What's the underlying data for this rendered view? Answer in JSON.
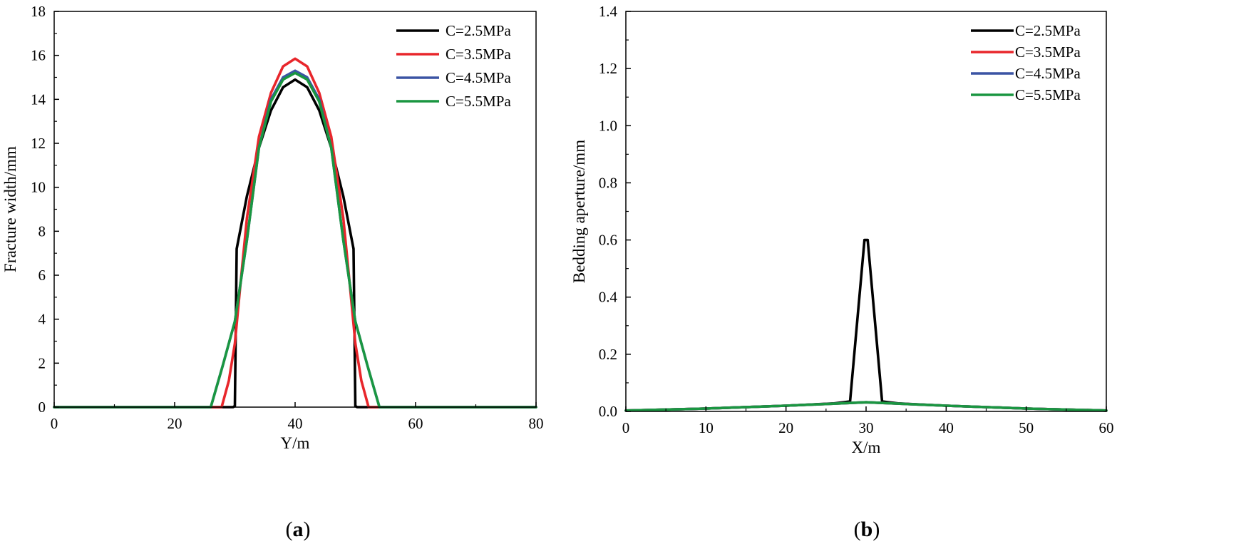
{
  "chart_data": [
    {
      "type": "line",
      "panel_label": "a",
      "xlabel": "Y/m",
      "ylabel": "Fracture width/mm",
      "xlim": [
        0,
        80
      ],
      "ylim": [
        0,
        18
      ],
      "xticks": [
        0,
        20,
        40,
        60,
        80
      ],
      "yticks": [
        0,
        2,
        4,
        6,
        8,
        10,
        12,
        14,
        16,
        18
      ],
      "legend_position": "top-right",
      "series": [
        {
          "name": "C=2.5MPa",
          "color": "#000000",
          "points": [
            [
              0,
              0
            ],
            [
              29.7,
              0
            ],
            [
              30.0,
              0.05
            ],
            [
              30.3,
              7.2
            ],
            [
              32,
              9.6
            ],
            [
              34,
              11.8
            ],
            [
              36,
              13.5
            ],
            [
              38,
              14.55
            ],
            [
              40,
              14.9
            ],
            [
              42,
              14.55
            ],
            [
              44,
              13.5
            ],
            [
              46,
              11.8
            ],
            [
              48,
              9.6
            ],
            [
              49.7,
              7.2
            ],
            [
              50.0,
              0.05
            ],
            [
              50.3,
              0
            ],
            [
              80,
              0
            ]
          ]
        },
        {
          "name": "C=3.5MPa",
          "color": "#e8262b",
          "points": [
            [
              0,
              0
            ],
            [
              27.8,
              0
            ],
            [
              29,
              1.2
            ],
            [
              30,
              2.9
            ],
            [
              31,
              5.8
            ],
            [
              32,
              8.6
            ],
            [
              34,
              12.3
            ],
            [
              36,
              14.3
            ],
            [
              38,
              15.5
            ],
            [
              40,
              15.85
            ],
            [
              42,
              15.5
            ],
            [
              44,
              14.3
            ],
            [
              46,
              12.3
            ],
            [
              48,
              8.6
            ],
            [
              49,
              5.8
            ],
            [
              50,
              2.9
            ],
            [
              51,
              1.2
            ],
            [
              52.2,
              0
            ],
            [
              80,
              0
            ]
          ]
        },
        {
          "name": "C=4.5MPa",
          "color": "#3b54a4",
          "points": [
            [
              0,
              0
            ],
            [
              26,
              0
            ],
            [
              28,
              1.9
            ],
            [
              30,
              3.9
            ],
            [
              32,
              7.6
            ],
            [
              34,
              11.8
            ],
            [
              36,
              14.0
            ],
            [
              38,
              15.0
            ],
            [
              40,
              15.3
            ],
            [
              42,
              15.0
            ],
            [
              44,
              14.0
            ],
            [
              46,
              11.8
            ],
            [
              48,
              7.6
            ],
            [
              50,
              3.9
            ],
            [
              52,
              1.9
            ],
            [
              54,
              0
            ],
            [
              80,
              0
            ]
          ]
        },
        {
          "name": "C=5.5MPa",
          "color": "#1a9641",
          "points": [
            [
              0,
              0
            ],
            [
              26,
              0
            ],
            [
              28,
              1.9
            ],
            [
              30,
              3.9
            ],
            [
              32,
              7.6
            ],
            [
              34,
              11.8
            ],
            [
              36,
              13.9
            ],
            [
              38,
              14.9
            ],
            [
              40,
              15.2
            ],
            [
              42,
              14.9
            ],
            [
              44,
              13.9
            ],
            [
              46,
              11.8
            ],
            [
              48,
              7.6
            ],
            [
              50,
              3.9
            ],
            [
              52,
              1.9
            ],
            [
              54,
              0
            ],
            [
              80,
              0
            ]
          ]
        }
      ]
    },
    {
      "type": "line",
      "panel_label": "b",
      "xlabel": "X/m",
      "ylabel": "Bedding aperture/mm",
      "xlim": [
        0,
        60
      ],
      "ylim": [
        0,
        1.4
      ],
      "xticks": [
        0,
        10,
        20,
        30,
        40,
        50,
        60
      ],
      "yticks": [
        0.0,
        0.2,
        0.4,
        0.6,
        0.8,
        1.0,
        1.2,
        1.4
      ],
      "legend_position": "top-right",
      "series": [
        {
          "name": "C=2.5MPa",
          "color": "#000000",
          "points": [
            [
              0,
              0.003
            ],
            [
              10,
              0.01
            ],
            [
              20,
              0.02
            ],
            [
              26,
              0.028
            ],
            [
              28,
              0.035
            ],
            [
              29.8,
              0.6
            ],
            [
              30.2,
              0.6
            ],
            [
              32,
              0.035
            ],
            [
              34,
              0.028
            ],
            [
              40,
              0.02
            ],
            [
              50,
              0.01
            ],
            [
              60,
              0.003
            ]
          ]
        },
        {
          "name": "C=3.5MPa",
          "color": "#e8262b",
          "points": [
            [
              0,
              0.003
            ],
            [
              10,
              0.01
            ],
            [
              20,
              0.02
            ],
            [
              30,
              0.032
            ],
            [
              40,
              0.02
            ],
            [
              50,
              0.01
            ],
            [
              60,
              0.003
            ]
          ]
        },
        {
          "name": "C=4.5MPa",
          "color": "#3b54a4",
          "points": [
            [
              0,
              0.003
            ],
            [
              10,
              0.01
            ],
            [
              20,
              0.02
            ],
            [
              30,
              0.032
            ],
            [
              40,
              0.02
            ],
            [
              50,
              0.01
            ],
            [
              60,
              0.003
            ]
          ]
        },
        {
          "name": "C=5.5MPa",
          "color": "#1a9641",
          "points": [
            [
              0,
              0.003
            ],
            [
              10,
              0.01
            ],
            [
              20,
              0.02
            ],
            [
              30,
              0.032
            ],
            [
              40,
              0.02
            ],
            [
              50,
              0.01
            ],
            [
              60,
              0.003
            ]
          ]
        }
      ]
    }
  ]
}
